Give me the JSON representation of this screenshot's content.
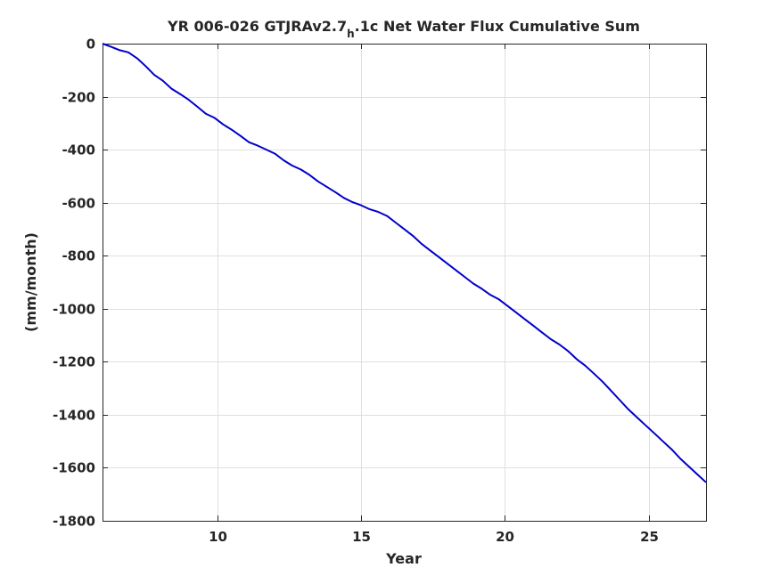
{
  "chart_data": {
    "type": "line",
    "title": {
      "prefix": "YR 006-026 GTJRAv2.7",
      "subscript": "h",
      "suffix": ".1c Net Water Flux Cumulative Sum"
    },
    "xlabel": "Year",
    "ylabel": "(mm/month)",
    "xlim": [
      6,
      27
    ],
    "ylim": [
      -1800,
      0
    ],
    "xticks": [
      10,
      15,
      20,
      25
    ],
    "xtick_labels": [
      "10",
      "15",
      "20",
      "25"
    ],
    "yticks": [
      0,
      -200,
      -400,
      -600,
      -800,
      -1000,
      -1200,
      -1400,
      -1600,
      -1800
    ],
    "ytick_labels": [
      "0",
      "-200",
      "-400",
      "-600",
      "-800",
      "-1000",
      "-1200",
      "-1400",
      "-1600",
      "-1800"
    ],
    "grid": true,
    "series": [
      {
        "color": "#0000cc",
        "x": [
          6.0,
          6.3,
          6.6,
          6.9,
          7.2,
          7.5,
          7.8,
          8.1,
          8.4,
          8.7,
          9.0,
          9.3,
          9.6,
          9.9,
          10.2,
          10.5,
          10.8,
          11.1,
          11.4,
          11.7,
          12.0,
          12.3,
          12.6,
          12.9,
          13.2,
          13.5,
          13.8,
          14.1,
          14.4,
          14.7,
          15.0,
          15.3,
          15.6,
          15.9,
          16.2,
          16.5,
          16.8,
          17.1,
          17.4,
          17.7,
          18.0,
          18.3,
          18.6,
          18.9,
          19.2,
          19.5,
          19.8,
          20.1,
          20.4,
          20.7,
          21.0,
          21.3,
          21.6,
          21.9,
          22.2,
          22.5,
          22.8,
          23.1,
          23.4,
          23.7,
          24.0,
          24.3,
          24.6,
          24.9,
          25.2,
          25.5,
          25.8,
          26.1,
          26.4,
          26.7,
          27.0
        ],
        "y": [
          0,
          -12,
          -25,
          -33,
          -55,
          -85,
          -118,
          -140,
          -170,
          -190,
          -212,
          -238,
          -265,
          -280,
          -305,
          -325,
          -348,
          -372,
          -385,
          -400,
          -415,
          -440,
          -460,
          -475,
          -495,
          -520,
          -540,
          -560,
          -582,
          -598,
          -610,
          -625,
          -635,
          -650,
          -675,
          -700,
          -725,
          -755,
          -780,
          -805,
          -830,
          -855,
          -880,
          -905,
          -925,
          -948,
          -965,
          -990,
          -1015,
          -1040,
          -1065,
          -1090,
          -1115,
          -1135,
          -1160,
          -1190,
          -1215,
          -1245,
          -1275,
          -1310,
          -1345,
          -1380,
          -1410,
          -1440,
          -1470,
          -1500,
          -1530,
          -1565,
          -1595,
          -1625,
          -1655
        ]
      }
    ]
  }
}
